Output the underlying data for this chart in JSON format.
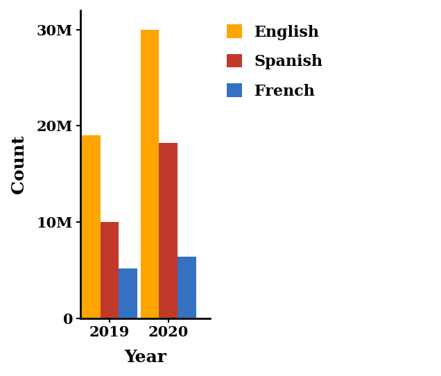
{
  "categories": [
    "2019",
    "2020"
  ],
  "series": [
    {
      "label": "English",
      "values": [
        19000000,
        30000000
      ],
      "color": "#FFA500"
    },
    {
      "label": "Spanish",
      "values": [
        10000000,
        18200000
      ],
      "color": "#C0392B"
    },
    {
      "label": "French",
      "values": [
        5200000,
        6400000
      ],
      "color": "#3471C1"
    }
  ],
  "xlabel": "Year",
  "ylabel": "Count",
  "ylim": [
    0,
    32000000
  ],
  "yticks": [
    0,
    10000000,
    20000000,
    30000000
  ],
  "ytick_labels": [
    "0",
    "10M",
    "20M",
    "30M"
  ],
  "bar_width": 0.22,
  "group_positions": [
    0.35,
    1.05
  ],
  "legend_fontsize": 16,
  "axis_label_fontsize": 18,
  "tick_fontsize": 15,
  "background_color": "#ffffff"
}
